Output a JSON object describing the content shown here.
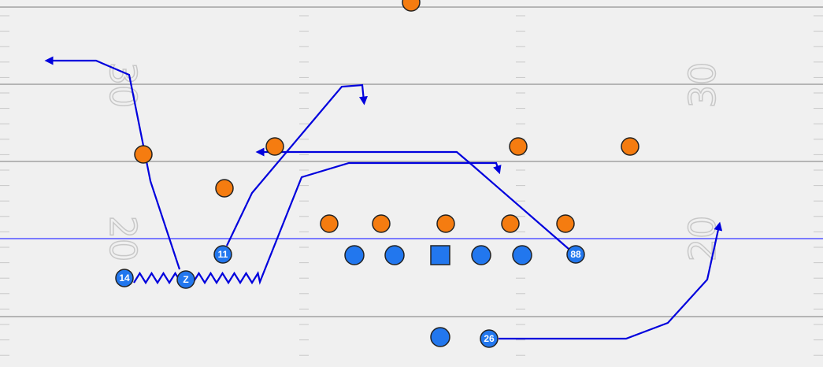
{
  "field_numbers": [
    "30",
    "30",
    "20",
    "20"
  ],
  "player_labels": [
    "14",
    "Z",
    "11",
    "88",
    "26"
  ]
}
